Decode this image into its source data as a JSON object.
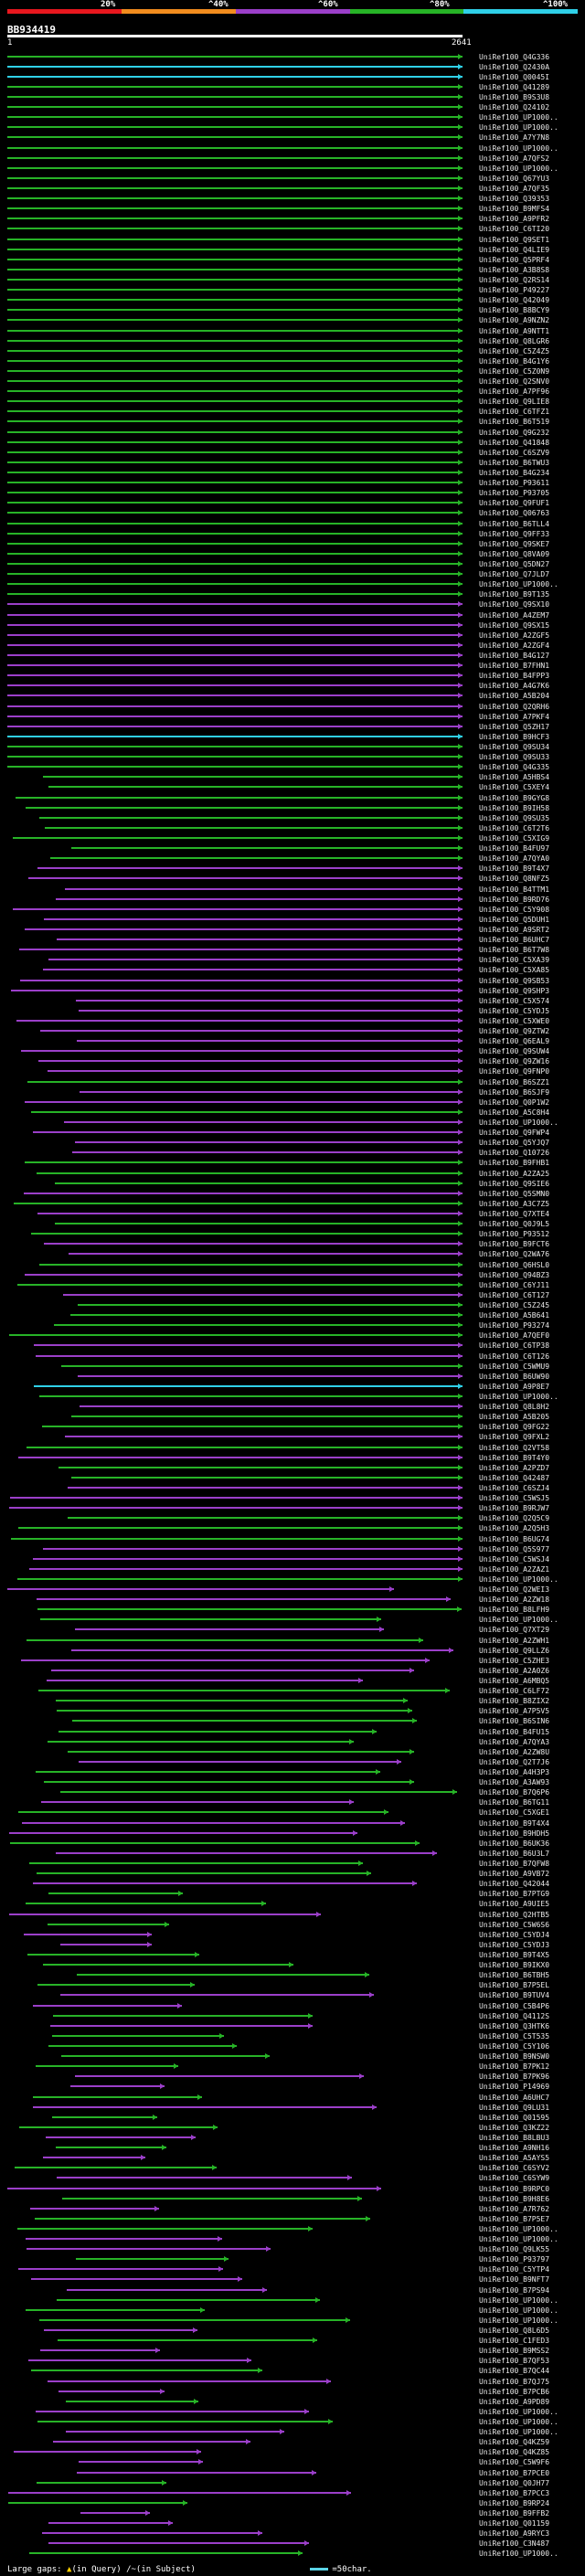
{
  "legend": {
    "labels": [
      "20%",
      "^40%",
      "^60%",
      "^80%",
      "^100%"
    ],
    "colors": [
      "#e8171e",
      "#f28c1e",
      "#9b3fc9",
      "#27b327",
      "#2fd0e8"
    ]
  },
  "query": {
    "id": "BB934419",
    "start": "1",
    "end": "2641"
  },
  "hits": {
    "query_length": 2641,
    "ids": [
      "UniRef100_Q4G336",
      "UniRef100_Q2430A",
      "UniRef100_Q0045I",
      "UniRef100_Q41289",
      "UniRef100_B9S3U8",
      "UniRef100_Q24102",
      "UniRef100_UP1000..",
      "UniRef100_UP1000..",
      "UniRef100_A7Y7N8",
      "UniRef100_UP1000..",
      "UniRef100_A7QFS2",
      "UniRef100_UP1000..",
      "UniRef100_Q67YU3",
      "UniRef100_A7QF35",
      "UniRef100_Q39353",
      "UniRef100_B9MFS4",
      "UniRef100_A9PFR2",
      "UniRef100_C6TI20",
      "UniRef100_Q9SET1",
      "UniRef100_Q4LIE9",
      "UniRef100_Q5PRF4",
      "UniRef100_A3B8S8",
      "UniRef100_Q2RS14",
      "UniRef100_P49227",
      "UniRef100_Q42049",
      "UniRef100_B8BCY9",
      "UniRef100_A9NZN2",
      "UniRef100_A9NTT1",
      "UniRef100_Q8LGR6",
      "UniRef100_C5Z4Z5",
      "UniRef100_B4G1Y6",
      "UniRef100_C5Z0N9",
      "UniRef100_Q2SNV0",
      "UniRef100_A7PF96",
      "UniRef100_Q9LIE8",
      "UniRef100_C6TFZ1",
      "UniRef100_B6T519",
      "UniRef100_Q9G232",
      "UniRef100_Q41848",
      "UniRef100_C6SZV9",
      "UniRef100_B6TWU3",
      "UniRef100_B4G234",
      "UniRef100_P93611",
      "UniRef100_P93705",
      "UniRef100_Q9FUF1",
      "UniRef100_Q06763",
      "UniRef100_B6TLL4",
      "UniRef100_Q9FF33",
      "UniRef100_Q9SKE7",
      "UniRef100_Q8VA09",
      "UniRef100_Q5DN27",
      "UniRef100_Q7JLD7",
      "UniRef100_UP1000..",
      "UniRef100_B9T135",
      "UniRef100_Q9SX10",
      "UniRef100_A4ZEM7",
      "UniRef100_Q9SX15",
      "UniRef100_A2ZGF5",
      "UniRef100_A2ZGF4",
      "UniRef100_B4G127",
      "UniRef100_B7FHN1",
      "UniRef100_B4FPP3",
      "UniRef100_A4G7K6",
      "UniRef100_A5B204",
      "UniRef100_Q2QRH6",
      "UniRef100_A7PKF4",
      "UniRef100_Q5ZH17",
      "UniRef100_B9HCF3",
      "UniRef100_Q9SU34",
      "UniRef100_Q9SU33",
      "UniRef100_Q4G335",
      "UniRef100_A5HBS4",
      "UniRef100_C5XEY4",
      "UniRef100_B9GYG8",
      "UniRef100_B9IH58",
      "UniRef100_Q9SU35",
      "UniRef100_C6T2T6",
      "UniRef100_C5XIG9",
      "UniRef100_B4FU97",
      "UniRef100_A7QYA0",
      "UniRef100_B9T4X7",
      "UniRef100_Q8NFZ5",
      "UniRef100_B4TTM1",
      "UniRef100_B9RD76",
      "UniRef100_C5Y908",
      "UniRef100_Q5DUH1",
      "UniRef100_A9SRT2",
      "UniRef100_B6UHC7",
      "UniRef100_B6T7W8",
      "UniRef100_C5XA39",
      "UniRef100_C5XA85",
      "UniRef100_Q9SB53",
      "UniRef100_Q9SHP3",
      "UniRef100_C5X574",
      "UniRef100_C5YDJ5",
      "UniRef100_C5XWE0",
      "UniRef100_Q9ZTW2",
      "UniRef100_Q6EAL9",
      "UniRef100_Q9SUW4",
      "UniRef100_Q9ZW16",
      "UniRef100_Q9FNP0",
      "UniRef100_B6SZZ1",
      "UniRef100_B6SJF9",
      "UniRef100_Q0P1W2",
      "UniRef100_A5C8H4",
      "UniRef100_UP1000..",
      "UniRef100_Q9FWP4",
      "UniRef100_Q5YJQ7",
      "UniRef100_Q10726",
      "UniRef100_B9FHB1",
      "UniRef100_A2ZA25",
      "UniRef100_Q9SIE6",
      "UniRef100_Q5SMN0",
      "UniRef100_A3C7Z5",
      "UniRef100_Q7XTE4",
      "UniRef100_Q0J9L5",
      "UniRef100_P93512",
      "UniRef100_B9FCT6",
      "UniRef100_Q2WA76",
      "UniRef100_Q6HSL0",
      "UniRef100_Q94BZ3",
      "UniRef100_C6YJ11",
      "UniRef100_C6T127",
      "UniRef100_C5Z245",
      "UniRef100_A5B641",
      "UniRef100_P93274",
      "UniRef100_A7QEF0",
      "UniRef100_C6TP38",
      "UniRef100_C6T126",
      "UniRef100_C5WMU9",
      "UniRef100_B6UW90",
      "UniRef100_A9P8E7",
      "UniRef100_UP1000..",
      "UniRef100_Q8L8H2",
      "UniRef100_A5B205",
      "UniRef100_Q9FG22",
      "UniRef100_Q9FXL2",
      "UniRef100_Q2VT58",
      "UniRef100_B9T4Y0",
      "UniRef100_A2PZD7",
      "UniRef100_Q42487",
      "UniRef100_C6SZJ4",
      "UniRef100_C5WSJ5",
      "UniRef100_B9RJW7",
      "UniRef100_Q2Q5C9",
      "UniRef100_A2Q5H3",
      "UniRef100_B6UG74",
      "UniRef100_Q5S977",
      "UniRef100_C5WSJ4",
      "UniRef100_A2ZAZ1",
      "UniRef100_UP1000..",
      "UniRef100_Q2WEI3",
      "UniRef100_A2ZW18",
      "UniRef100_B8LFH9",
      "UniRef100_UP1000..",
      "UniRef100_Q7XT29",
      "UniRef100_A2ZWH1",
      "UniRef100_Q9LLZ6",
      "UniRef100_C5ZHE3",
      "UniRef100_A2A0Z6",
      "UniRef100_A6MBQ5",
      "UniRef100_C6LF72",
      "UniRef100_B8ZIX2",
      "UniRef100_A7P5V5",
      "UniRef100_B6SIN6",
      "UniRef100_B4FU15",
      "UniRef100_A7QYA3",
      "UniRef100_A2ZW8U",
      "UniRef100_Q2T7J6",
      "UniRef100_A4H3P3",
      "UniRef100_A3AW93",
      "UniRef100_B7Q6P6",
      "UniRef100_B6TG11",
      "UniRef100_C5XGE1",
      "UniRef100_B9T4X4",
      "UniRef100_B9HDH5",
      "UniRef100_B6UK36",
      "UniRef100_B6U3L7",
      "UniRef100_B7QFW8",
      "UniRef100_A9VB72",
      "UniRef100_Q42044",
      "UniRef100_B7PTG9",
      "UniRef100_A9UIE5",
      "UniRef100_Q2HTB5",
      "UniRef100_C5W6S6",
      "UniRef100_C5YDJ4",
      "UniRef100_C5YDJ3",
      "UniRef100_B9T4X5",
      "UniRef100_B9IKX0",
      "UniRef100_B6TBH5",
      "UniRef100_B7P5EL",
      "UniRef100_B9TUV4",
      "UniRef100_C5B4P6",
      "UniRef100_Q4112S",
      "UniRef100_Q3HTK6",
      "UniRef100_C5T535",
      "UniRef100_C5Y106",
      "UniRef100_B9NSW0",
      "UniRef100_B7PK12",
      "UniRef100_B7PK96",
      "UniRef100_P14969",
      "UniRef100_A6UHC7",
      "UniRef100_Q9LU31",
      "UniRef100_Q01595",
      "UniRef100_Q3KZ22",
      "UniRef100_B8LBU3",
      "UniRef100_A9NH16",
      "UniRef100_A5AYS5",
      "UniRef100_C6SYV2",
      "UniRef100_C6SYW9",
      "UniRef100_B9RPC0",
      "UniRef100_B9H8E6",
      "UniRef100_A7R762",
      "UniRef100_B7P5E7",
      "UniRef100_UP1000..",
      "UniRef100_UP1000..",
      "UniRef100_Q9LK55",
      "UniRef100_P93797",
      "UniRef100_C5YTP4",
      "UniRef100_B9NFT7",
      "UniRef100_B7PS94",
      "UniRef100_UP1000..",
      "UniRef100_UP1000..",
      "UniRef100_UP1000..",
      "UniRef100_Q8L6D5",
      "UniRef100_C1FED3",
      "UniRef100_B9MSS2",
      "UniRef100_B7QF53",
      "UniRef100_B7QC44",
      "UniRef100_B7QJ75",
      "UniRef100_B7PCB6",
      "UniRef100_A9PD89",
      "UniRef100_UP1000..",
      "UniRef100_UP1000..",
      "UniRef100_UP1000..",
      "UniRef100_Q4KZ59",
      "UniRef100_Q4KZ85",
      "UniRef100_C5W9F6",
      "UniRef100_B7PCE0",
      "UniRef100_Q0JH77",
      "UniRef100_B7PCC3",
      "UniRef100_B9RP24",
      "UniRef100_B9FFB2",
      "UniRef100_Q01159",
      "UniRef100_A9RYC3",
      "UniRef100_C3N487",
      "UniRef100_UP1000.."
    ]
  },
  "footer": {
    "prefix": "Large gaps:",
    "query_gap_symbol": "▲",
    "query_gap_label": "(in Query)",
    "subject_gap_symbol": "/~",
    "subject_gap_label": "(in Subject)",
    "scale_label": "=50char."
  }
}
